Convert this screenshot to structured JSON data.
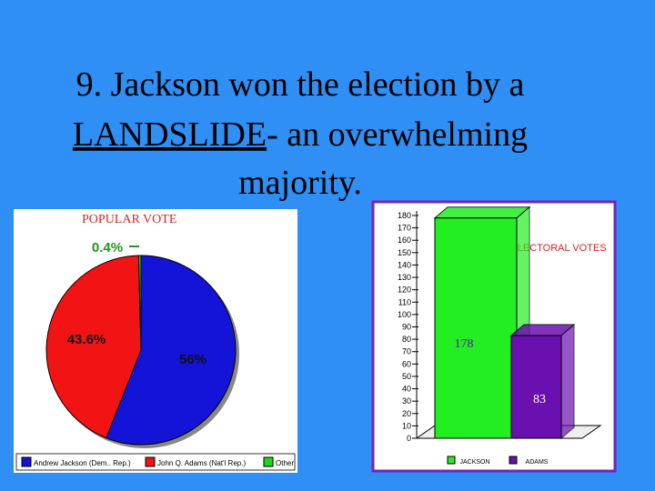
{
  "slide": {
    "title": [
      "9. Jackson won the election by a",
      "LANDSLIDE",
      "- an overwhelming",
      "majority."
    ]
  },
  "chart_data": [
    {
      "type": "pie",
      "title": "POPULAR VOTE",
      "categories": [
        "Andrew Jackson (Dem.. Rep.)",
        "John Q. Adams (Nat'l Rep.)",
        "Other"
      ],
      "values": [
        56,
        43.6,
        0.4
      ],
      "value_labels": [
        "56%",
        "43.6%",
        "0.4%"
      ],
      "colors": [
        "#1414d8",
        "#f21414",
        "#1fd61f"
      ],
      "legend": "bottom"
    },
    {
      "type": "bar",
      "title": "ELECTORAL VOTES",
      "categories": [
        "JACKSON",
        "ADAMS"
      ],
      "values": [
        178,
        83
      ],
      "colors": [
        "#22ee22",
        "#6a10b0"
      ],
      "ylim": [
        0,
        180
      ],
      "yticks": [
        0,
        10,
        20,
        30,
        40,
        50,
        60,
        70,
        80,
        90,
        100,
        110,
        120,
        130,
        140,
        150,
        160,
        170,
        180
      ]
    }
  ]
}
